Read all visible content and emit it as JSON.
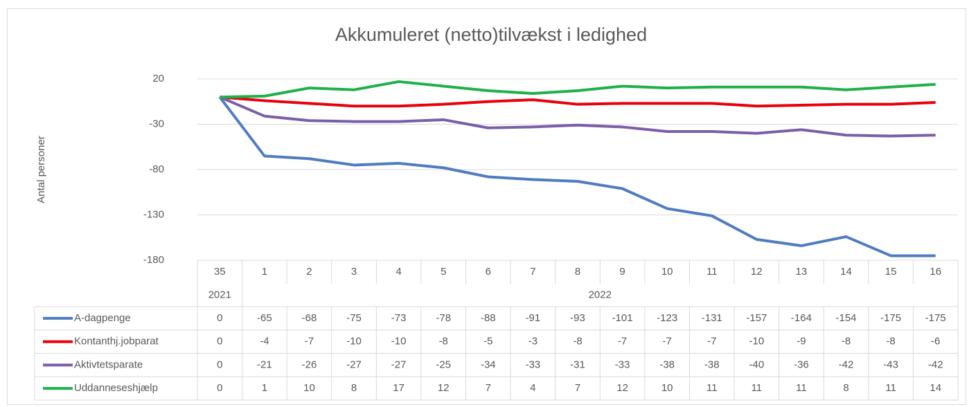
{
  "chart_data": {
    "type": "line",
    "title": "Akkumuleret (netto)tilvækst i ledighed",
    "y_label": "Antal personer",
    "categories": [
      "35",
      "1",
      "2",
      "3",
      "4",
      "5",
      "6",
      "7",
      "8",
      "9",
      "10",
      "11",
      "12",
      "13",
      "14",
      "15",
      "16"
    ],
    "category_groups": [
      {
        "label": "2021",
        "count": 1
      },
      {
        "label": "2022",
        "count": 16
      }
    ],
    "ylim": [
      -180,
      20
    ],
    "yticks": [
      20,
      -30,
      -80,
      -130,
      -180
    ],
    "grid": true,
    "data_table": true,
    "series": [
      {
        "name": "A-dagpenge",
        "color": "#4f7cc1",
        "values": [
          0,
          -65,
          -68,
          -75,
          -73,
          -78,
          -88,
          -91,
          -93,
          -101,
          -123,
          -131,
          -157,
          -164,
          -154,
          -175,
          -175
        ]
      },
      {
        "name": "Kontanthj.jobparat",
        "color": "#e8000b",
        "values": [
          0,
          -4,
          -7,
          -10,
          -10,
          -8,
          -5,
          -3,
          -8,
          -7,
          -7,
          -7,
          -10,
          -9,
          -8,
          -8,
          -6
        ]
      },
      {
        "name": "Aktivtetsparate",
        "color": "#7b5ea7",
        "values": [
          0,
          -21,
          -26,
          -27,
          -27,
          -25,
          -34,
          -33,
          -31,
          -33,
          -38,
          -38,
          -40,
          -36,
          -42,
          -43,
          -42
        ]
      },
      {
        "name": "Uddanneseshjælp",
        "color": "#1fb04a",
        "values": [
          0,
          1,
          10,
          8,
          17,
          12,
          7,
          4,
          7,
          12,
          10,
          11,
          11,
          11,
          8,
          11,
          14
        ]
      }
    ]
  }
}
